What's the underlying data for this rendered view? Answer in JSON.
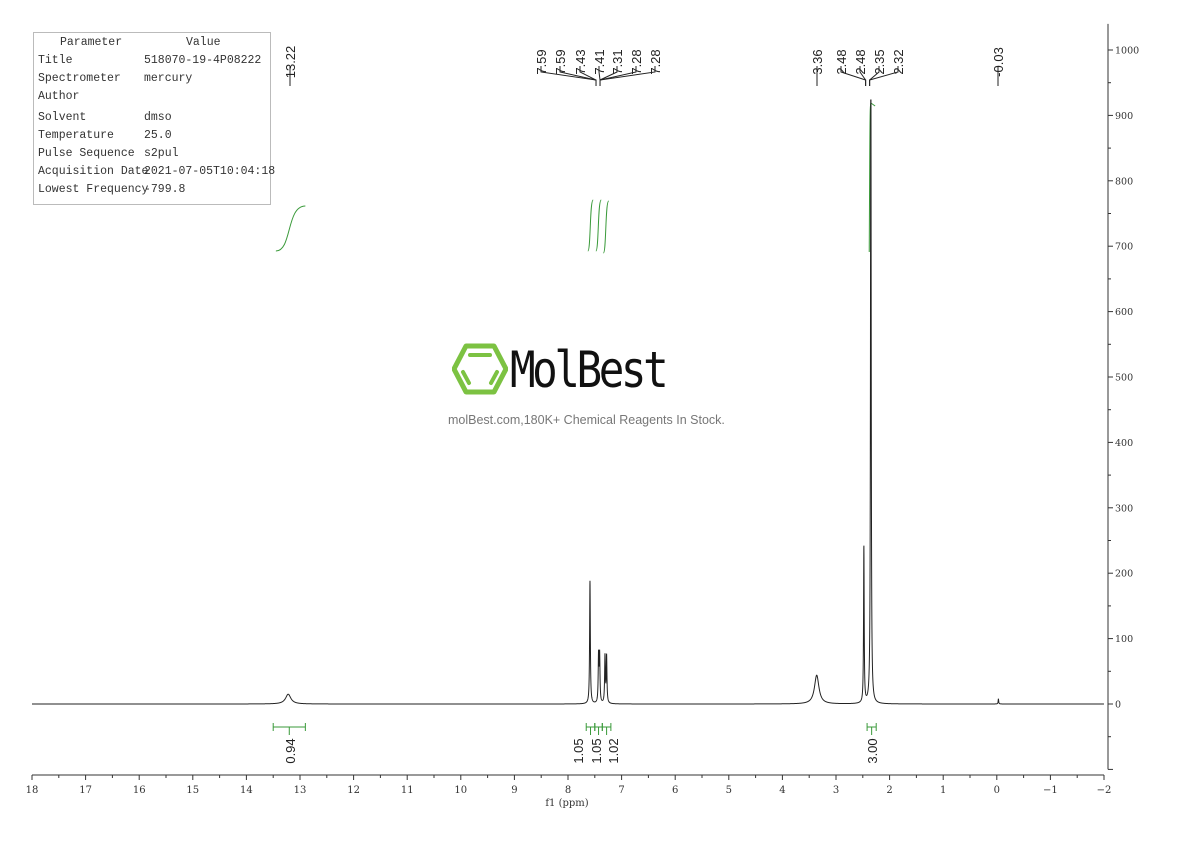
{
  "parameters": {
    "header": [
      "Parameter",
      "Value"
    ],
    "rows": [
      [
        "Title",
        "518070-19-4P08222"
      ],
      [
        "Spectrometer",
        "mercury"
      ],
      [
        "Author",
        ""
      ],
      [
        "Solvent",
        "dmso"
      ],
      [
        "Temperature",
        "25.0"
      ],
      [
        "Pulse Sequence",
        "s2pul"
      ],
      [
        "Acquisition Date",
        "2021-07-05T10:04:18"
      ],
      [
        "Lowest Frequency",
        "-799.8"
      ]
    ]
  },
  "watermark": {
    "brand": "MolBest",
    "tagline": "molBest.com,180K+ Chemical Reagents In Stock.",
    "logo_color": "#7cc242"
  },
  "chart_data": {
    "type": "line",
    "xlabel": "f1 (ppm)",
    "ylabel": "",
    "xlim": [
      18,
      -2
    ],
    "ylim": [
      -100,
      1000
    ],
    "x_ticks": [
      18,
      17,
      16,
      15,
      14,
      13,
      12,
      11,
      10,
      9,
      8,
      7,
      6,
      5,
      4,
      3,
      2,
      1,
      0,
      -1,
      -2
    ],
    "y_ticks": [
      1000,
      900,
      800,
      700,
      600,
      500,
      400,
      300,
      200,
      100,
      0
    ],
    "grid": false,
    "line_color": "#222222",
    "integral_color": "#3a9a3a",
    "peaks": [
      {
        "ppm": 13.22,
        "intensity": 15,
        "width": 0.06
      },
      {
        "ppm": 7.59,
        "intensity": 188,
        "width": 0.008
      },
      {
        "ppm": 7.43,
        "intensity": 72,
        "width": 0.008
      },
      {
        "ppm": 7.41,
        "intensity": 72,
        "width": 0.008
      },
      {
        "ppm": 7.31,
        "intensity": 72,
        "width": 0.008
      },
      {
        "ppm": 7.28,
        "intensity": 72,
        "width": 0.008
      },
      {
        "ppm": 3.36,
        "intensity": 44,
        "width": 0.05
      },
      {
        "ppm": 2.48,
        "intensity": 240,
        "width": 0.007
      },
      {
        "ppm": 2.35,
        "intensity": 1100,
        "width": 0.007
      },
      {
        "ppm": -0.03,
        "intensity": 8,
        "width": 0.006
      }
    ],
    "peak_label_groups": [
      {
        "labels": [
          "13.22"
        ],
        "target": 13.22
      },
      {
        "labels": [
          "7.59",
          "7.59",
          "7.43",
          "7.41",
          "7.31",
          "7.28",
          "7.28"
        ],
        "target": 7.44
      },
      {
        "labels": [
          "3.36"
        ],
        "target": 3.36
      },
      {
        "labels": [
          "2.48",
          "2.48",
          "2.35",
          "2.32"
        ],
        "target": 2.41
      },
      {
        "labels": [
          "-0.03"
        ],
        "target": -0.03
      }
    ],
    "integrals": [
      {
        "from": 13.5,
        "to": 12.9,
        "value": "0.94"
      },
      {
        "from": 7.66,
        "to": 7.5,
        "value": "1.05"
      },
      {
        "from": 7.5,
        "to": 7.36,
        "value": "1.05"
      },
      {
        "from": 7.36,
        "to": 7.2,
        "value": "1.02"
      },
      {
        "from": 2.42,
        "to": 2.25,
        "value": "3.00"
      }
    ]
  }
}
